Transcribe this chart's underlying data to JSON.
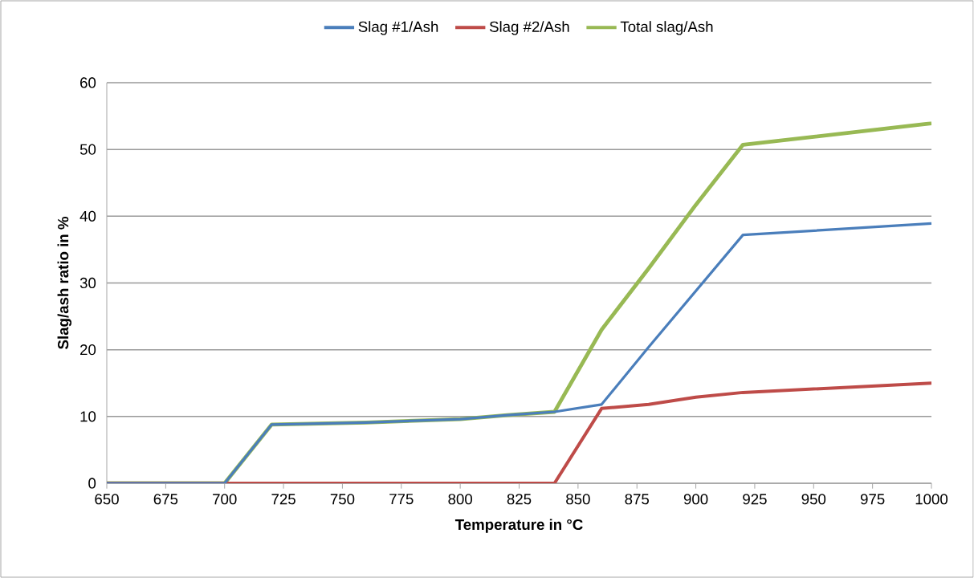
{
  "chart_data": {
    "type": "line",
    "xlabel": "Temperature in °C",
    "ylabel": "Slag/ash ratio in %",
    "x": [
      650,
      700,
      720,
      760,
      800,
      820,
      840,
      860,
      880,
      900,
      920,
      1000
    ],
    "series": [
      {
        "name": "Slag #1/Ash",
        "color": "#4a7ebb",
        "values": [
          0,
          0,
          8.8,
          9.1,
          9.6,
          10.2,
          10.7,
          11.8,
          20.4,
          28.8,
          37.2,
          38.9
        ]
      },
      {
        "name": "Slag #2/Ash",
        "color": "#be4b48",
        "values": [
          0,
          0,
          0,
          0,
          0,
          0,
          0,
          11.2,
          11.8,
          12.9,
          13.6,
          15.0
        ]
      },
      {
        "name": "Total slag/Ash",
        "color": "#98b954",
        "values": [
          0,
          0,
          8.8,
          9.1,
          9.6,
          10.2,
          10.7,
          23.0,
          32.2,
          41.7,
          50.7,
          53.9
        ]
      }
    ],
    "xlim": [
      650,
      1000
    ],
    "xticks": [
      650,
      675,
      700,
      725,
      750,
      775,
      800,
      825,
      850,
      875,
      900,
      925,
      950,
      975,
      1000
    ],
    "ylim": [
      0,
      60
    ],
    "yticks": [
      0,
      10,
      20,
      30,
      40,
      50,
      60
    ],
    "grid": "y",
    "legend": "top",
    "line_style": "solid"
  }
}
